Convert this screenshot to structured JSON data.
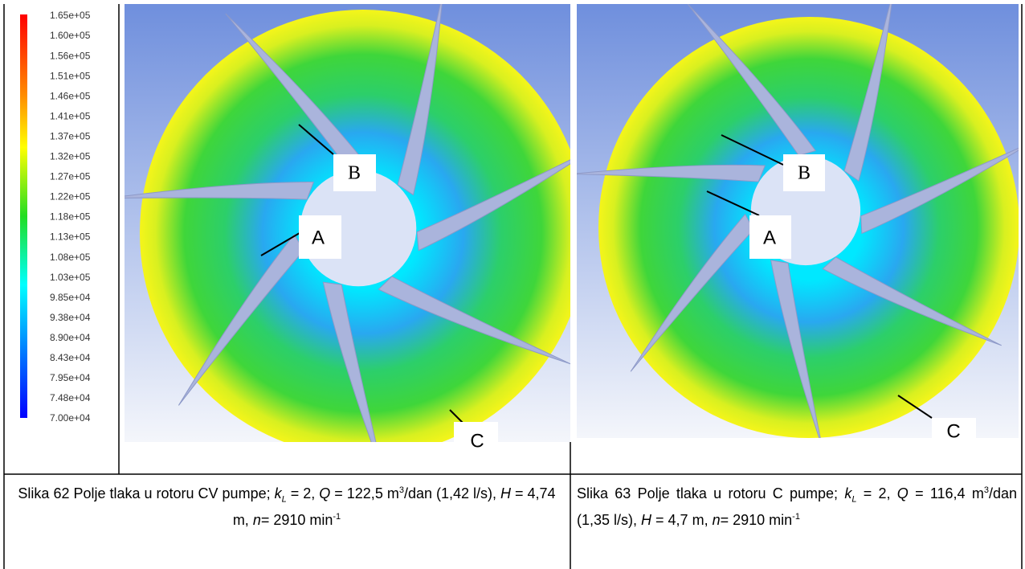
{
  "legend": {
    "labels": [
      "1.65e+05",
      "1.60e+05",
      "1.56e+05",
      "1.51e+05",
      "1.46e+05",
      "1.41e+05",
      "1.37e+05",
      "1.32e+05",
      "1.27e+05",
      "1.22e+05",
      "1.18e+05",
      "1.13e+05",
      "1.08e+05",
      "1.03e+05",
      "9.85e+04",
      "9.38e+04",
      "8.90e+04",
      "8.43e+04",
      "7.95e+04",
      "7.48e+04",
      "7.00e+04"
    ]
  },
  "figures": [
    {
      "markers": [
        "A",
        "B",
        "C"
      ],
      "caption": [
        "Slika 62 Polje tlaka u rotoru CV pumpe; ",
        "k",
        "L",
        " = 2, ",
        "Q",
        " = 122,5 m",
        "3",
        "/dan (1,42 l/s), ",
        "H",
        " = 4,74 m, ",
        "n",
        "= 2910 min",
        "-1"
      ]
    },
    {
      "markers": [
        "A",
        "B",
        "C"
      ],
      "caption": [
        "Slika 63 Polje tlaka u rotoru C pumpe; ",
        "k",
        "L",
        " = 2, ",
        "Q",
        " = 116,4 m",
        "3",
        "/dan (1,35 l/s), ",
        "H",
        " = 4,7 m, ",
        "n",
        "= 2910 min",
        "-1"
      ]
    }
  ]
}
